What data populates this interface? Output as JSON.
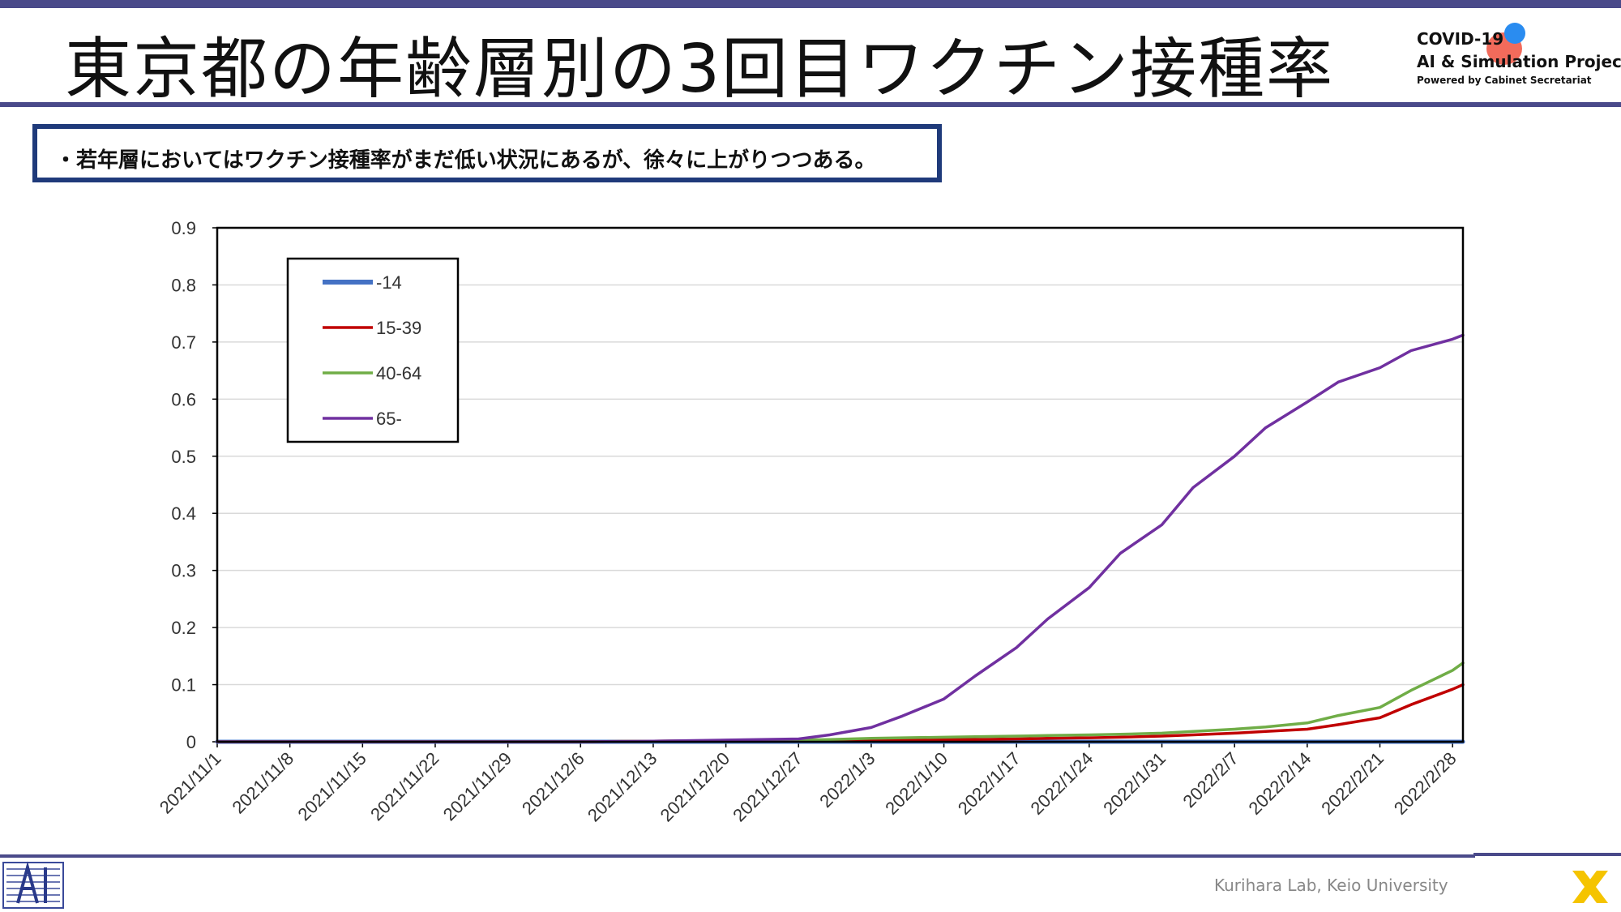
{
  "slide": {
    "title": "東京都の年齢層別の3回目ワクチン接種率",
    "callout": "・若年層においてはワクチン接種率がまだ低い状況にあるが、徐々に上がりつつある。",
    "footer": "Kurihara Lab, Keio University",
    "logo": {
      "line1": "COVID-19",
      "line2": "AI & Simulation Project",
      "line3": "Powered by Cabinet Secretariat"
    }
  },
  "chart_data": {
    "type": "line",
    "title": "",
    "xlabel": "",
    "ylabel": "",
    "ylim": [
      0,
      0.9
    ],
    "yticks": [
      "0",
      "0.1",
      "0.2",
      "0.3",
      "0.4",
      "0.5",
      "0.6",
      "0.7",
      "0.8",
      "0.9"
    ],
    "xlim": [
      "2021/11/1",
      "2022/3/1"
    ],
    "xticks": [
      "2021/11/1",
      "2021/11/8",
      "2021/11/15",
      "2021/11/22",
      "2021/11/29",
      "2021/12/6",
      "2021/12/13",
      "2021/12/20",
      "2021/12/27",
      "2022/1/3",
      "2022/1/10",
      "2022/1/17",
      "2022/1/24",
      "2022/1/31",
      "2022/2/7",
      "2022/2/14",
      "2022/2/21",
      "2022/2/28"
    ],
    "grid": "horizontal",
    "legend_position": "top-left",
    "x": [
      "2021/11/1",
      "2021/11/29",
      "2021/12/6",
      "2021/12/13",
      "2021/12/20",
      "2021/12/27",
      "2021/12/30",
      "2022/1/3",
      "2022/1/6",
      "2022/1/10",
      "2022/1/13",
      "2022/1/17",
      "2022/1/20",
      "2022/1/24",
      "2022/1/27",
      "2022/1/31",
      "2022/2/3",
      "2022/2/7",
      "2022/2/10",
      "2022/2/14",
      "2022/2/17",
      "2022/2/21",
      "2022/2/24",
      "2022/2/28",
      "2022/3/1"
    ],
    "series": [
      {
        "name": "-14",
        "color": "#4472c4",
        "values": [
          0,
          0,
          0,
          0,
          0,
          0,
          0,
          0,
          0,
          0,
          0,
          0,
          0,
          0,
          0,
          0,
          0,
          0,
          0,
          0,
          0,
          0,
          0,
          0,
          0
        ]
      },
      {
        "name": "15-39",
        "color": "#c00000",
        "values": [
          0,
          0,
          0,
          0.001,
          0.002,
          0.002,
          0.003,
          0.003,
          0.003,
          0.004,
          0.004,
          0.005,
          0.006,
          0.007,
          0.008,
          0.01,
          0.012,
          0.015,
          0.018,
          0.022,
          0.03,
          0.042,
          0.065,
          0.092,
          0.1
        ]
      },
      {
        "name": "40-64",
        "color": "#70ad47",
        "values": [
          0,
          0,
          0,
          0.001,
          0.002,
          0.003,
          0.004,
          0.006,
          0.007,
          0.008,
          0.009,
          0.01,
          0.011,
          0.012,
          0.013,
          0.015,
          0.018,
          0.022,
          0.026,
          0.033,
          0.046,
          0.06,
          0.09,
          0.125,
          0.138
        ]
      },
      {
        "name": "65-",
        "color": "#7030a0",
        "values": [
          0,
          0,
          0,
          0.001,
          0.003,
          0.005,
          0.012,
          0.025,
          0.045,
          0.075,
          0.115,
          0.165,
          0.215,
          0.27,
          0.33,
          0.38,
          0.445,
          0.5,
          0.55,
          0.595,
          0.63,
          0.655,
          0.685,
          0.705,
          0.712
        ]
      }
    ]
  }
}
